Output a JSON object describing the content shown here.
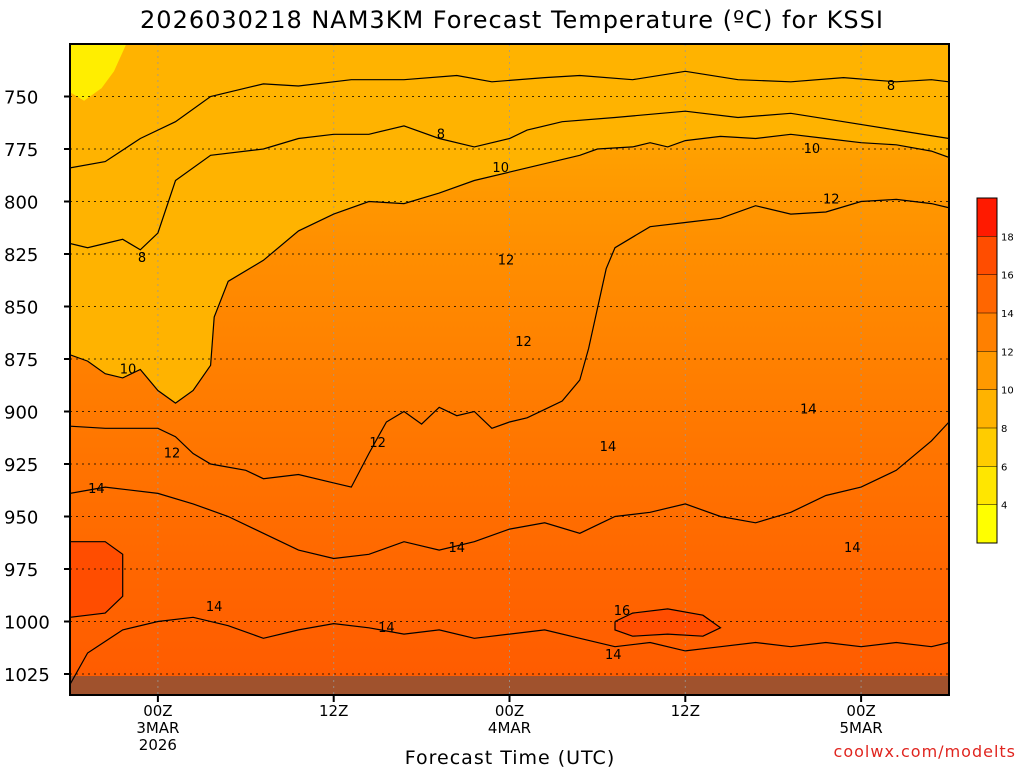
{
  "chart_data": {
    "type": "heatmap",
    "title": "2026030218 NAM3KM Forecast Temperature (ºC) for KSSI",
    "xlabel": "Forecast Time (UTC)",
    "ylabel": "",
    "y_ticks": [
      "750",
      "775",
      "800",
      "825",
      "850",
      "875",
      "900",
      "925",
      "950",
      "975",
      "1000",
      "1025"
    ],
    "y_values": [
      750,
      775,
      800,
      825,
      850,
      875,
      900,
      925,
      950,
      975,
      1000,
      1025
    ],
    "ylim": [
      725,
      1035
    ],
    "y_inverted": true,
    "xlim": [
      -5,
      45
    ],
    "x_ticks": [
      {
        "value": 0,
        "lines": [
          "00Z",
          "3MAR",
          "2026"
        ]
      },
      {
        "value": 10,
        "lines": [
          "12Z"
        ]
      },
      {
        "value": 20,
        "lines": [
          "00Z",
          "4MAR"
        ]
      },
      {
        "value": 30,
        "lines": [
          "12Z"
        ]
      },
      {
        "value": 40,
        "lines": [
          "00Z",
          "5MAR"
        ]
      }
    ],
    "grid": true,
    "contour_interval": 2,
    "contours": [
      {
        "level": 8,
        "points": [
          [
            -5,
            784
          ],
          [
            -3,
            781
          ],
          [
            -1,
            770
          ],
          [
            1,
            762
          ],
          [
            3,
            750
          ],
          [
            5,
            746
          ],
          [
            6,
            744
          ],
          [
            8,
            745
          ],
          [
            11,
            742
          ],
          [
            14,
            742
          ],
          [
            17,
            740
          ],
          [
            19,
            743
          ],
          [
            22,
            741
          ],
          [
            24,
            740
          ],
          [
            27,
            742
          ],
          [
            30,
            738
          ],
          [
            33,
            742
          ],
          [
            36,
            743
          ],
          [
            39,
            741
          ],
          [
            42,
            743
          ],
          [
            44,
            742
          ],
          [
            45,
            743
          ]
        ]
      },
      {
        "level": 8,
        "points": [
          [
            -5,
            820
          ],
          [
            -4,
            822
          ],
          [
            -3,
            820
          ],
          [
            -2,
            818
          ],
          [
            -1,
            823
          ],
          [
            0,
            815
          ],
          [
            1,
            790
          ],
          [
            3,
            778
          ],
          [
            6,
            775
          ],
          [
            8,
            770
          ],
          [
            10,
            768
          ],
          [
            12,
            768
          ],
          [
            14,
            764
          ],
          [
            16,
            770
          ],
          [
            18,
            774
          ],
          [
            20,
            770
          ],
          [
            21,
            766
          ],
          [
            23,
            762
          ],
          [
            26,
            760
          ],
          [
            30,
            757
          ],
          [
            33,
            760
          ],
          [
            36,
            758
          ],
          [
            39,
            762
          ],
          [
            42,
            766
          ],
          [
            45,
            770
          ]
        ]
      },
      {
        "level": 10,
        "points": [
          [
            -5,
            873
          ],
          [
            -4,
            876
          ],
          [
            -3,
            882
          ],
          [
            -2,
            884
          ],
          [
            -1,
            880
          ],
          [
            0,
            890
          ],
          [
            1,
            896
          ],
          [
            2,
            890
          ],
          [
            3,
            878
          ],
          [
            3.2,
            855
          ],
          [
            4,
            838
          ],
          [
            6,
            828
          ],
          [
            8,
            814
          ],
          [
            10,
            806
          ],
          [
            12,
            800
          ],
          [
            14,
            801
          ],
          [
            16,
            796
          ],
          [
            18,
            790
          ],
          [
            20,
            786
          ],
          [
            22,
            782
          ],
          [
            24,
            778
          ],
          [
            25,
            775
          ],
          [
            27,
            774
          ],
          [
            28,
            772
          ],
          [
            29,
            774
          ],
          [
            30,
            771
          ],
          [
            32,
            769
          ],
          [
            34,
            770
          ],
          [
            36,
            768
          ],
          [
            38,
            770
          ],
          [
            40,
            772
          ],
          [
            42,
            773
          ],
          [
            44,
            776
          ],
          [
            45,
            779
          ]
        ]
      },
      {
        "level": 12,
        "points": [
          [
            -5,
            907
          ],
          [
            -3,
            908
          ],
          [
            0,
            908
          ],
          [
            1,
            912
          ],
          [
            2,
            920
          ],
          [
            3,
            925
          ],
          [
            5,
            928
          ],
          [
            6,
            932
          ],
          [
            8,
            930
          ],
          [
            10,
            934
          ],
          [
            11,
            936
          ],
          [
            12,
            920
          ],
          [
            13,
            905
          ],
          [
            14,
            900
          ],
          [
            15,
            906
          ],
          [
            16,
            898
          ],
          [
            17,
            902
          ],
          [
            18,
            900
          ],
          [
            19,
            908
          ],
          [
            20,
            905
          ],
          [
            21,
            903
          ],
          [
            22,
            899
          ],
          [
            23,
            895
          ],
          [
            24,
            885
          ],
          [
            24.5,
            870
          ],
          [
            25.5,
            832
          ],
          [
            26,
            822
          ],
          [
            28,
            812
          ],
          [
            30,
            810
          ],
          [
            32,
            808
          ],
          [
            34,
            802
          ],
          [
            36,
            806
          ],
          [
            38,
            805
          ],
          [
            40,
            800
          ],
          [
            42,
            799
          ],
          [
            44,
            801
          ],
          [
            45,
            803
          ]
        ]
      },
      {
        "level": 14,
        "points": [
          [
            -5,
            939
          ],
          [
            -3,
            936
          ],
          [
            0,
            939
          ],
          [
            2,
            944
          ],
          [
            4,
            950
          ],
          [
            6,
            958
          ],
          [
            8,
            966
          ],
          [
            10,
            970
          ],
          [
            12,
            968
          ],
          [
            14,
            962
          ],
          [
            16,
            966
          ],
          [
            18,
            962
          ],
          [
            20,
            956
          ],
          [
            22,
            953
          ],
          [
            24,
            958
          ],
          [
            26,
            950
          ],
          [
            28,
            948
          ],
          [
            30,
            944
          ],
          [
            32,
            950
          ],
          [
            34,
            953
          ],
          [
            36,
            948
          ],
          [
            38,
            940
          ],
          [
            40,
            936
          ],
          [
            42,
            928
          ],
          [
            44,
            914
          ],
          [
            45,
            905
          ]
        ]
      },
      {
        "level": 14,
        "points": [
          [
            -5,
            1030
          ],
          [
            -4,
            1015
          ],
          [
            -2,
            1004
          ],
          [
            0,
            1000
          ],
          [
            2,
            998
          ],
          [
            4,
            1002
          ],
          [
            6,
            1008
          ],
          [
            8,
            1004
          ],
          [
            10,
            1001
          ],
          [
            12,
            1003
          ],
          [
            14,
            1006
          ],
          [
            16,
            1004
          ],
          [
            18,
            1008
          ],
          [
            20,
            1006
          ],
          [
            22,
            1004
          ],
          [
            24,
            1008
          ],
          [
            26,
            1012
          ],
          [
            28,
            1010
          ],
          [
            30,
            1014
          ],
          [
            32,
            1012
          ],
          [
            34,
            1010
          ],
          [
            36,
            1012
          ],
          [
            38,
            1010
          ],
          [
            40,
            1012
          ],
          [
            42,
            1010
          ],
          [
            44,
            1012
          ],
          [
            45,
            1010
          ]
        ]
      },
      {
        "level": 16,
        "points": [
          [
            26,
            1000
          ],
          [
            27,
            996
          ],
          [
            29,
            994
          ],
          [
            31,
            997
          ],
          [
            32,
            1003
          ],
          [
            31,
            1007
          ],
          [
            29,
            1006
          ],
          [
            27,
            1007
          ],
          [
            26,
            1004
          ],
          [
            26,
            1000
          ]
        ]
      },
      {
        "level": 16,
        "points": [
          [
            -5,
            962
          ],
          [
            -3,
            962
          ],
          [
            -2,
            968
          ],
          [
            -2,
            988
          ],
          [
            -3,
            996
          ],
          [
            -5,
            998
          ]
        ]
      }
    ],
    "contour_labels": [
      {
        "x": 41.7,
        "y": 745,
        "text": "8"
      },
      {
        "x": 16.1,
        "y": 768,
        "text": "8"
      },
      {
        "x": -0.9,
        "y": 827,
        "text": "8"
      },
      {
        "x": 37.2,
        "y": 775,
        "text": "10"
      },
      {
        "x": 19.5,
        "y": 784,
        "text": "10"
      },
      {
        "x": -1.7,
        "y": 880,
        "text": "10"
      },
      {
        "x": 38.3,
        "y": 799,
        "text": "12"
      },
      {
        "x": 19.8,
        "y": 828,
        "text": "12"
      },
      {
        "x": 20.8,
        "y": 867,
        "text": "12"
      },
      {
        "x": 12.5,
        "y": 915,
        "text": "12"
      },
      {
        "x": 0.8,
        "y": 920,
        "text": "12"
      },
      {
        "x": 37.0,
        "y": 899,
        "text": "14"
      },
      {
        "x": 25.6,
        "y": 917,
        "text": "14"
      },
      {
        "x": 17.0,
        "y": 965,
        "text": "14"
      },
      {
        "x": -3.5,
        "y": 937,
        "text": "14"
      },
      {
        "x": 39.5,
        "y": 965,
        "text": "14"
      },
      {
        "x": 3.2,
        "y": 993,
        "text": "14"
      },
      {
        "x": 13.0,
        "y": 1003,
        "text": "14"
      },
      {
        "x": 25.9,
        "y": 1016,
        "text": "14"
      },
      {
        "x": 26.4,
        "y": 995,
        "text": "16"
      }
    ],
    "colorbar": {
      "labels": [
        "4",
        "6",
        "8",
        "10",
        "12",
        "14",
        "16",
        "18"
      ],
      "levels": [
        4,
        6,
        8,
        10,
        12,
        14,
        16,
        18
      ],
      "colors": [
        "#ffff00",
        "#ffe600",
        "#ffcc00",
        "#ffb300",
        "#ff9900",
        "#ff8000",
        "#ff6600",
        "#ff4d00",
        "#ff1a00"
      ]
    },
    "ground_band_color": "#a0522d"
  },
  "credit": "coolwx.com/modelts"
}
